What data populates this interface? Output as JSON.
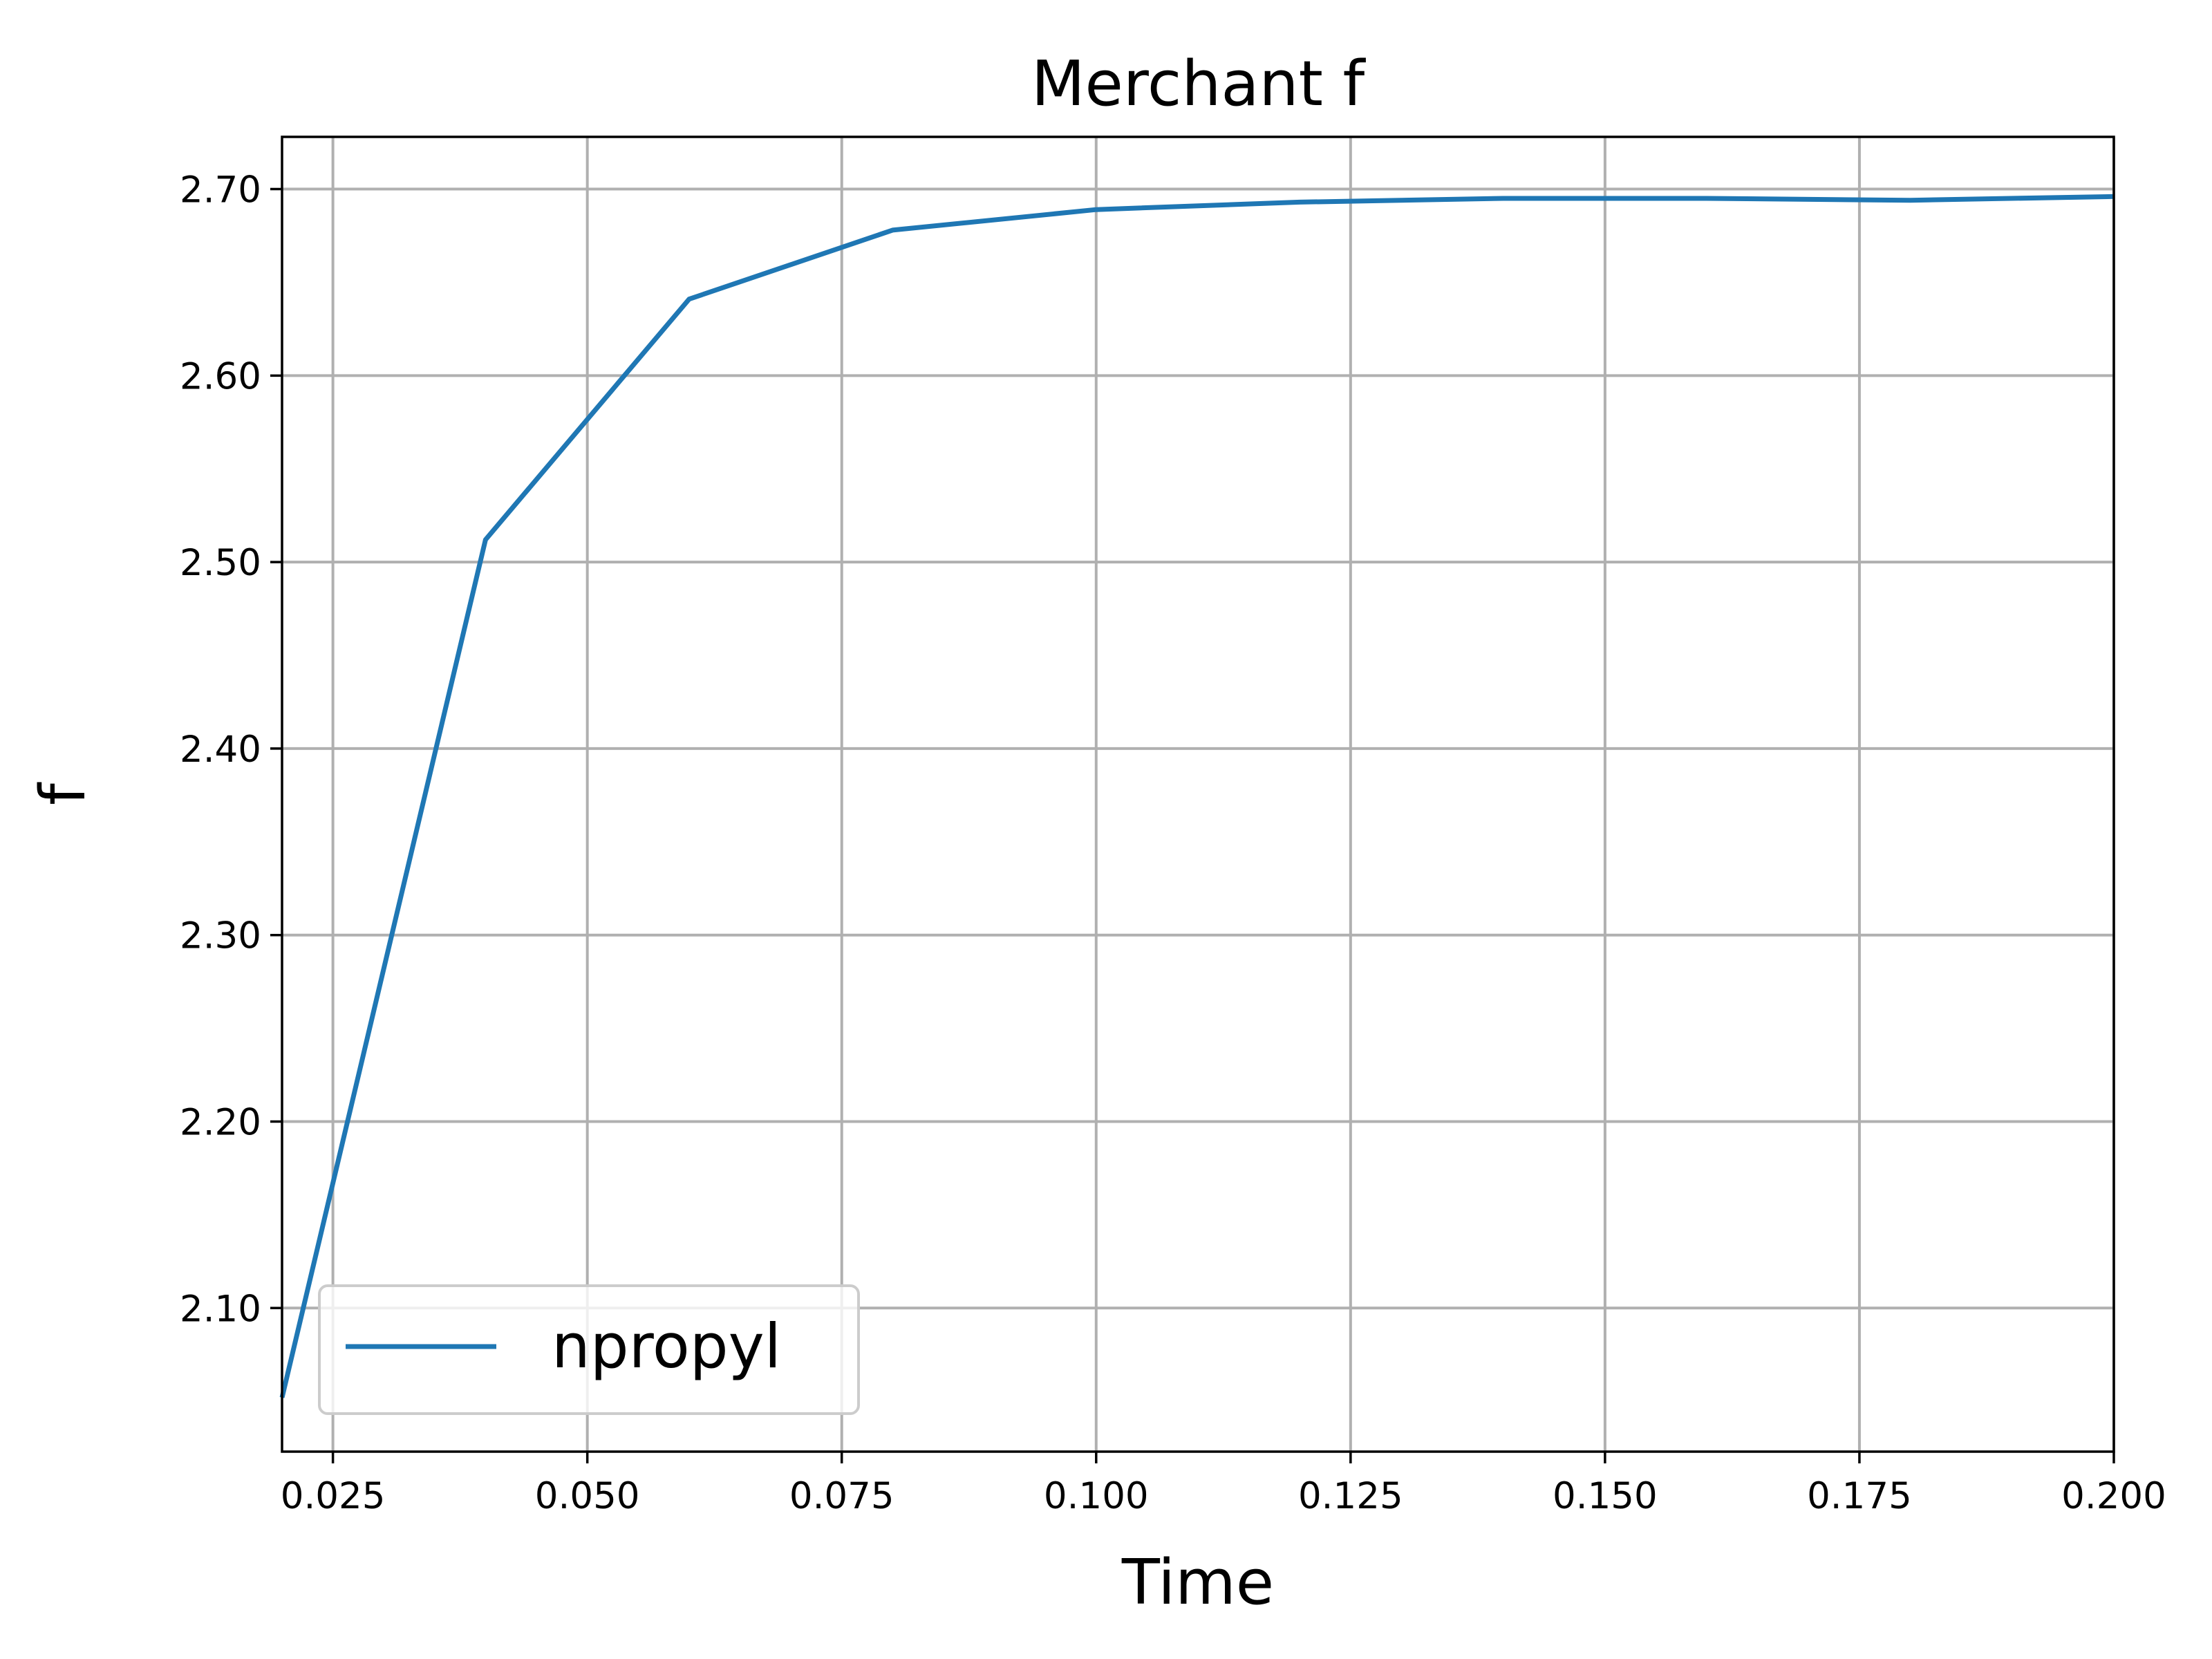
{
  "chart_data": {
    "type": "line",
    "title": "Merchant f",
    "xlabel": "Time",
    "ylabel": "f",
    "xlim": [
      0.02,
      0.2
    ],
    "ylim": [
      2.023,
      2.728
    ],
    "x_ticks": [
      0.025,
      0.05,
      0.075,
      0.1,
      0.125,
      0.15,
      0.175,
      0.2
    ],
    "x_tick_labels": [
      "0.025",
      "0.050",
      "0.075",
      "0.100",
      "0.125",
      "0.150",
      "0.175",
      "0.200"
    ],
    "y_ticks": [
      2.1,
      2.2,
      2.3,
      2.4,
      2.5,
      2.6,
      2.7
    ],
    "y_tick_labels": [
      "2.10",
      "2.20",
      "2.30",
      "2.40",
      "2.50",
      "2.60",
      "2.70"
    ],
    "grid": true,
    "legend_position": "lower-left",
    "series": [
      {
        "name": "npropyl",
        "color": "#1f77b4",
        "x": [
          0.02,
          0.04,
          0.06,
          0.08,
          0.1,
          0.12,
          0.14,
          0.16,
          0.18,
          0.2
        ],
        "y": [
          2.052,
          2.512,
          2.641,
          2.678,
          2.689,
          2.693,
          2.695,
          2.695,
          2.694,
          2.696
        ]
      }
    ]
  }
}
